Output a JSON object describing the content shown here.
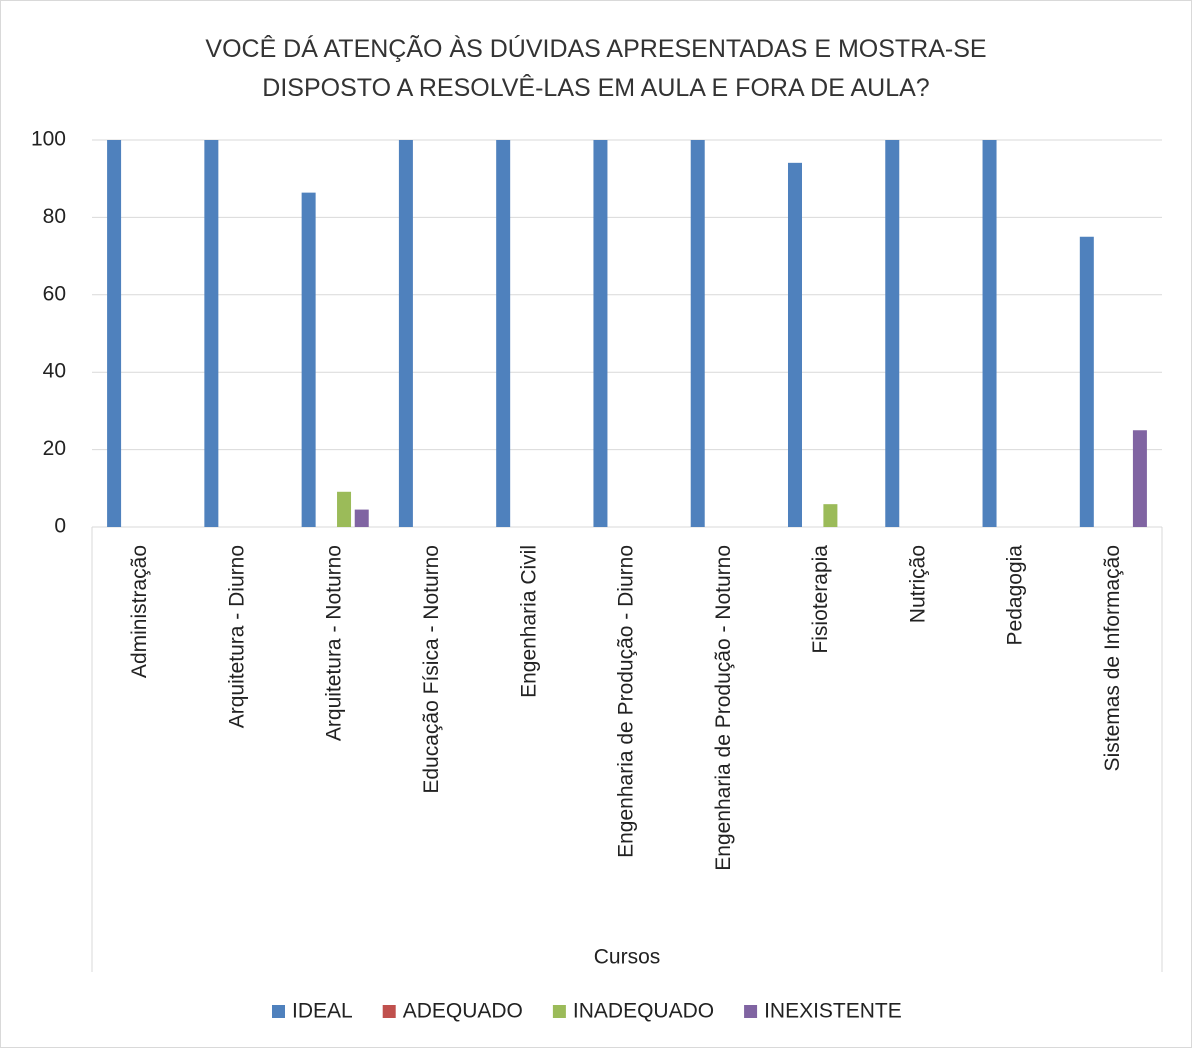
{
  "chart_data": {
    "type": "bar",
    "title": "VOCÊ DÁ ATENÇÃO ÀS DÚVIDAS APRESENTADAS E MOSTRA-SE DISPOSTO A RESOLVÊ-LAS EM AULA E FORA DE AULA?",
    "x_label": "Cursos",
    "categories": [
      "Administração",
      "Arquitetura - Diurno",
      "Arquitetura - Noturno",
      "Educação Física - Noturno",
      "Engenharia Civil",
      "Engenharia de Produção - Diurno",
      "Engenharia de Produção - Noturno",
      "Fisioterapia",
      "Nutrição",
      "Pedagogia",
      "Sistemas de Informação"
    ],
    "series": [
      {
        "name": "IDEAL",
        "color": "#4f81bd",
        "values": [
          100,
          100,
          86.4,
          100,
          100,
          100,
          100,
          94.1,
          100,
          100,
          75
        ]
      },
      {
        "name": "ADEQUADO",
        "color": "#c0504d",
        "values": [
          0,
          0,
          0,
          0,
          0,
          0,
          0,
          0,
          0,
          0,
          0
        ]
      },
      {
        "name": "INADEQUADO",
        "color": "#9bbb59",
        "values": [
          0,
          0,
          9.1,
          0,
          0,
          0,
          0,
          5.9,
          0,
          0,
          0
        ]
      },
      {
        "name": "INEXISTENTE",
        "color": "#8064a2",
        "values": [
          0,
          0,
          4.5,
          0,
          0,
          0,
          0,
          0,
          0,
          0,
          25
        ]
      }
    ],
    "ylim": [
      0,
      100
    ],
    "yticks": [
      0,
      20,
      40,
      60,
      80,
      100
    ],
    "grid": true,
    "legend": "bottom"
  }
}
